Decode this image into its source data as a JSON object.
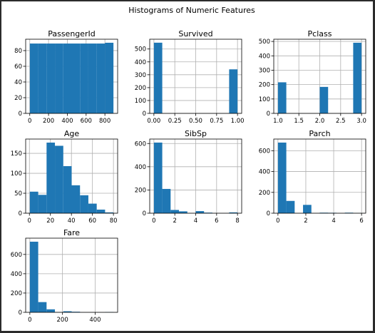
{
  "figure": {
    "suptitle": "Histograms of Numeric Features"
  },
  "chart_data": [
    {
      "type": "bar",
      "title": "PassengerId",
      "xlabel": "",
      "ylabel": "",
      "bins": [
        [
          1,
          90
        ],
        [
          90,
          179
        ],
        [
          179,
          268
        ],
        [
          268,
          357
        ],
        [
          357,
          446
        ],
        [
          446,
          535
        ],
        [
          535,
          624
        ],
        [
          624,
          713
        ],
        [
          713,
          802
        ],
        [
          802,
          891
        ]
      ],
      "values": [
        89,
        89,
        89,
        89,
        89,
        89,
        89,
        89,
        89,
        90
      ],
      "xlim": [
        -43.5,
        935.5
      ],
      "ylim": [
        0,
        94.5
      ],
      "xticks": [
        0,
        200,
        400,
        600,
        800
      ],
      "yticks": [
        0,
        20,
        40,
        60,
        80
      ],
      "grid": true
    },
    {
      "type": "bar",
      "title": "Survived",
      "xlabel": "",
      "ylabel": "",
      "bins": [
        [
          0,
          0.1
        ],
        [
          0.1,
          0.2
        ],
        [
          0.2,
          0.3
        ],
        [
          0.3,
          0.4
        ],
        [
          0.4,
          0.5
        ],
        [
          0.5,
          0.6
        ],
        [
          0.6,
          0.7
        ],
        [
          0.7,
          0.8
        ],
        [
          0.8,
          0.9
        ],
        [
          0.9,
          1.0
        ]
      ],
      "values": [
        549,
        0,
        0,
        0,
        0,
        0,
        0,
        0,
        0,
        342
      ],
      "xlim": [
        -0.05,
        1.05
      ],
      "ylim": [
        0,
        576
      ],
      "xticks": [
        0.0,
        0.25,
        0.5,
        0.75,
        1.0
      ],
      "xtick_labels": [
        "0.00",
        "0.25",
        "0.50",
        "0.75",
        "1.00"
      ],
      "yticks": [
        0,
        100,
        200,
        300,
        400,
        500
      ],
      "grid": true
    },
    {
      "type": "bar",
      "title": "Pclass",
      "xlabel": "",
      "ylabel": "",
      "bins": [
        [
          1,
          1.2
        ],
        [
          1.2,
          1.4
        ],
        [
          1.4,
          1.6
        ],
        [
          1.6,
          1.8
        ],
        [
          1.8,
          2.0
        ],
        [
          2.0,
          2.2
        ],
        [
          2.2,
          2.4
        ],
        [
          2.4,
          2.6
        ],
        [
          2.6,
          2.8
        ],
        [
          2.8,
          3.0
        ]
      ],
      "values": [
        216,
        0,
        0,
        0,
        0,
        184,
        0,
        0,
        0,
        491
      ],
      "xlim": [
        0.9,
        3.1
      ],
      "ylim": [
        0,
        515.5
      ],
      "xticks": [
        1.0,
        1.5,
        2.0,
        2.5,
        3.0
      ],
      "xtick_labels": [
        "1.0",
        "1.5",
        "2.0",
        "2.5",
        "3.0"
      ],
      "yticks": [
        0,
        100,
        200,
        300,
        400,
        500
      ],
      "grid": true
    },
    {
      "type": "bar",
      "title": "Age",
      "xlabel": "",
      "ylabel": "",
      "bins": [
        [
          0.42,
          8.38
        ],
        [
          8.38,
          16.34
        ],
        [
          16.34,
          24.29
        ],
        [
          24.29,
          32.25
        ],
        [
          32.25,
          40.21
        ],
        [
          40.21,
          48.17
        ],
        [
          48.17,
          56.13
        ],
        [
          56.13,
          64.08
        ],
        [
          64.08,
          72.04
        ],
        [
          72.04,
          80.0
        ]
      ],
      "values": [
        54,
        46,
        177,
        169,
        118,
        70,
        45,
        24,
        9,
        2
      ],
      "xlim": [
        -3.56,
        83.98
      ],
      "ylim": [
        0,
        185.9
      ],
      "xticks": [
        0,
        20,
        40,
        60,
        80
      ],
      "yticks": [
        0,
        50,
        100,
        150
      ],
      "grid": true
    },
    {
      "type": "bar",
      "title": "SibSp",
      "xlabel": "",
      "ylabel": "",
      "bins": [
        [
          0,
          0.8
        ],
        [
          0.8,
          1.6
        ],
        [
          1.6,
          2.4
        ],
        [
          2.4,
          3.2
        ],
        [
          3.2,
          4.0
        ],
        [
          4.0,
          4.8
        ],
        [
          4.8,
          5.6
        ],
        [
          5.6,
          6.4
        ],
        [
          6.4,
          7.2
        ],
        [
          7.2,
          8.0
        ]
      ],
      "values": [
        608,
        209,
        28,
        16,
        0,
        18,
        5,
        0,
        0,
        7
      ],
      "xlim": [
        -0.4,
        8.4
      ],
      "ylim": [
        0,
        638.4
      ],
      "xticks": [
        0,
        2,
        4,
        6,
        8
      ],
      "yticks": [
        0,
        200,
        400,
        600
      ],
      "grid": true
    },
    {
      "type": "bar",
      "title": "Parch",
      "xlabel": "",
      "ylabel": "",
      "bins": [
        [
          0,
          0.6
        ],
        [
          0.6,
          1.2
        ],
        [
          1.2,
          1.8
        ],
        [
          1.8,
          2.4
        ],
        [
          2.4,
          3.0
        ],
        [
          3.0,
          3.6
        ],
        [
          3.6,
          4.2
        ],
        [
          4.2,
          4.8
        ],
        [
          4.8,
          5.4
        ],
        [
          5.4,
          6.0
        ]
      ],
      "values": [
        678,
        118,
        0,
        80,
        0,
        5,
        4,
        0,
        5,
        1
      ],
      "xlim": [
        -0.3,
        6.3
      ],
      "ylim": [
        0,
        711.9
      ],
      "xticks": [
        0,
        2,
        4,
        6
      ],
      "yticks": [
        0,
        200,
        400,
        600
      ],
      "grid": true
    },
    {
      "type": "bar",
      "title": "Fare",
      "xlabel": "",
      "ylabel": "",
      "bins": [
        [
          0,
          51.23
        ],
        [
          51.23,
          102.47
        ],
        [
          102.47,
          153.7
        ],
        [
          153.7,
          204.94
        ],
        [
          204.94,
          256.17
        ],
        [
          256.17,
          307.4
        ],
        [
          307.4,
          358.64
        ],
        [
          358.64,
          409.87
        ],
        [
          409.87,
          461.11
        ],
        [
          461.11,
          512.33
        ]
      ],
      "values": [
        732,
        106,
        31,
        2,
        11,
        6,
        0,
        0,
        0,
        3
      ],
      "xlim": [
        -25.6,
        537.9
      ],
      "ylim": [
        0,
        768.6
      ],
      "xticks": [
        0,
        200,
        400
      ],
      "yticks": [
        0,
        200,
        400,
        600
      ],
      "grid": true
    }
  ]
}
